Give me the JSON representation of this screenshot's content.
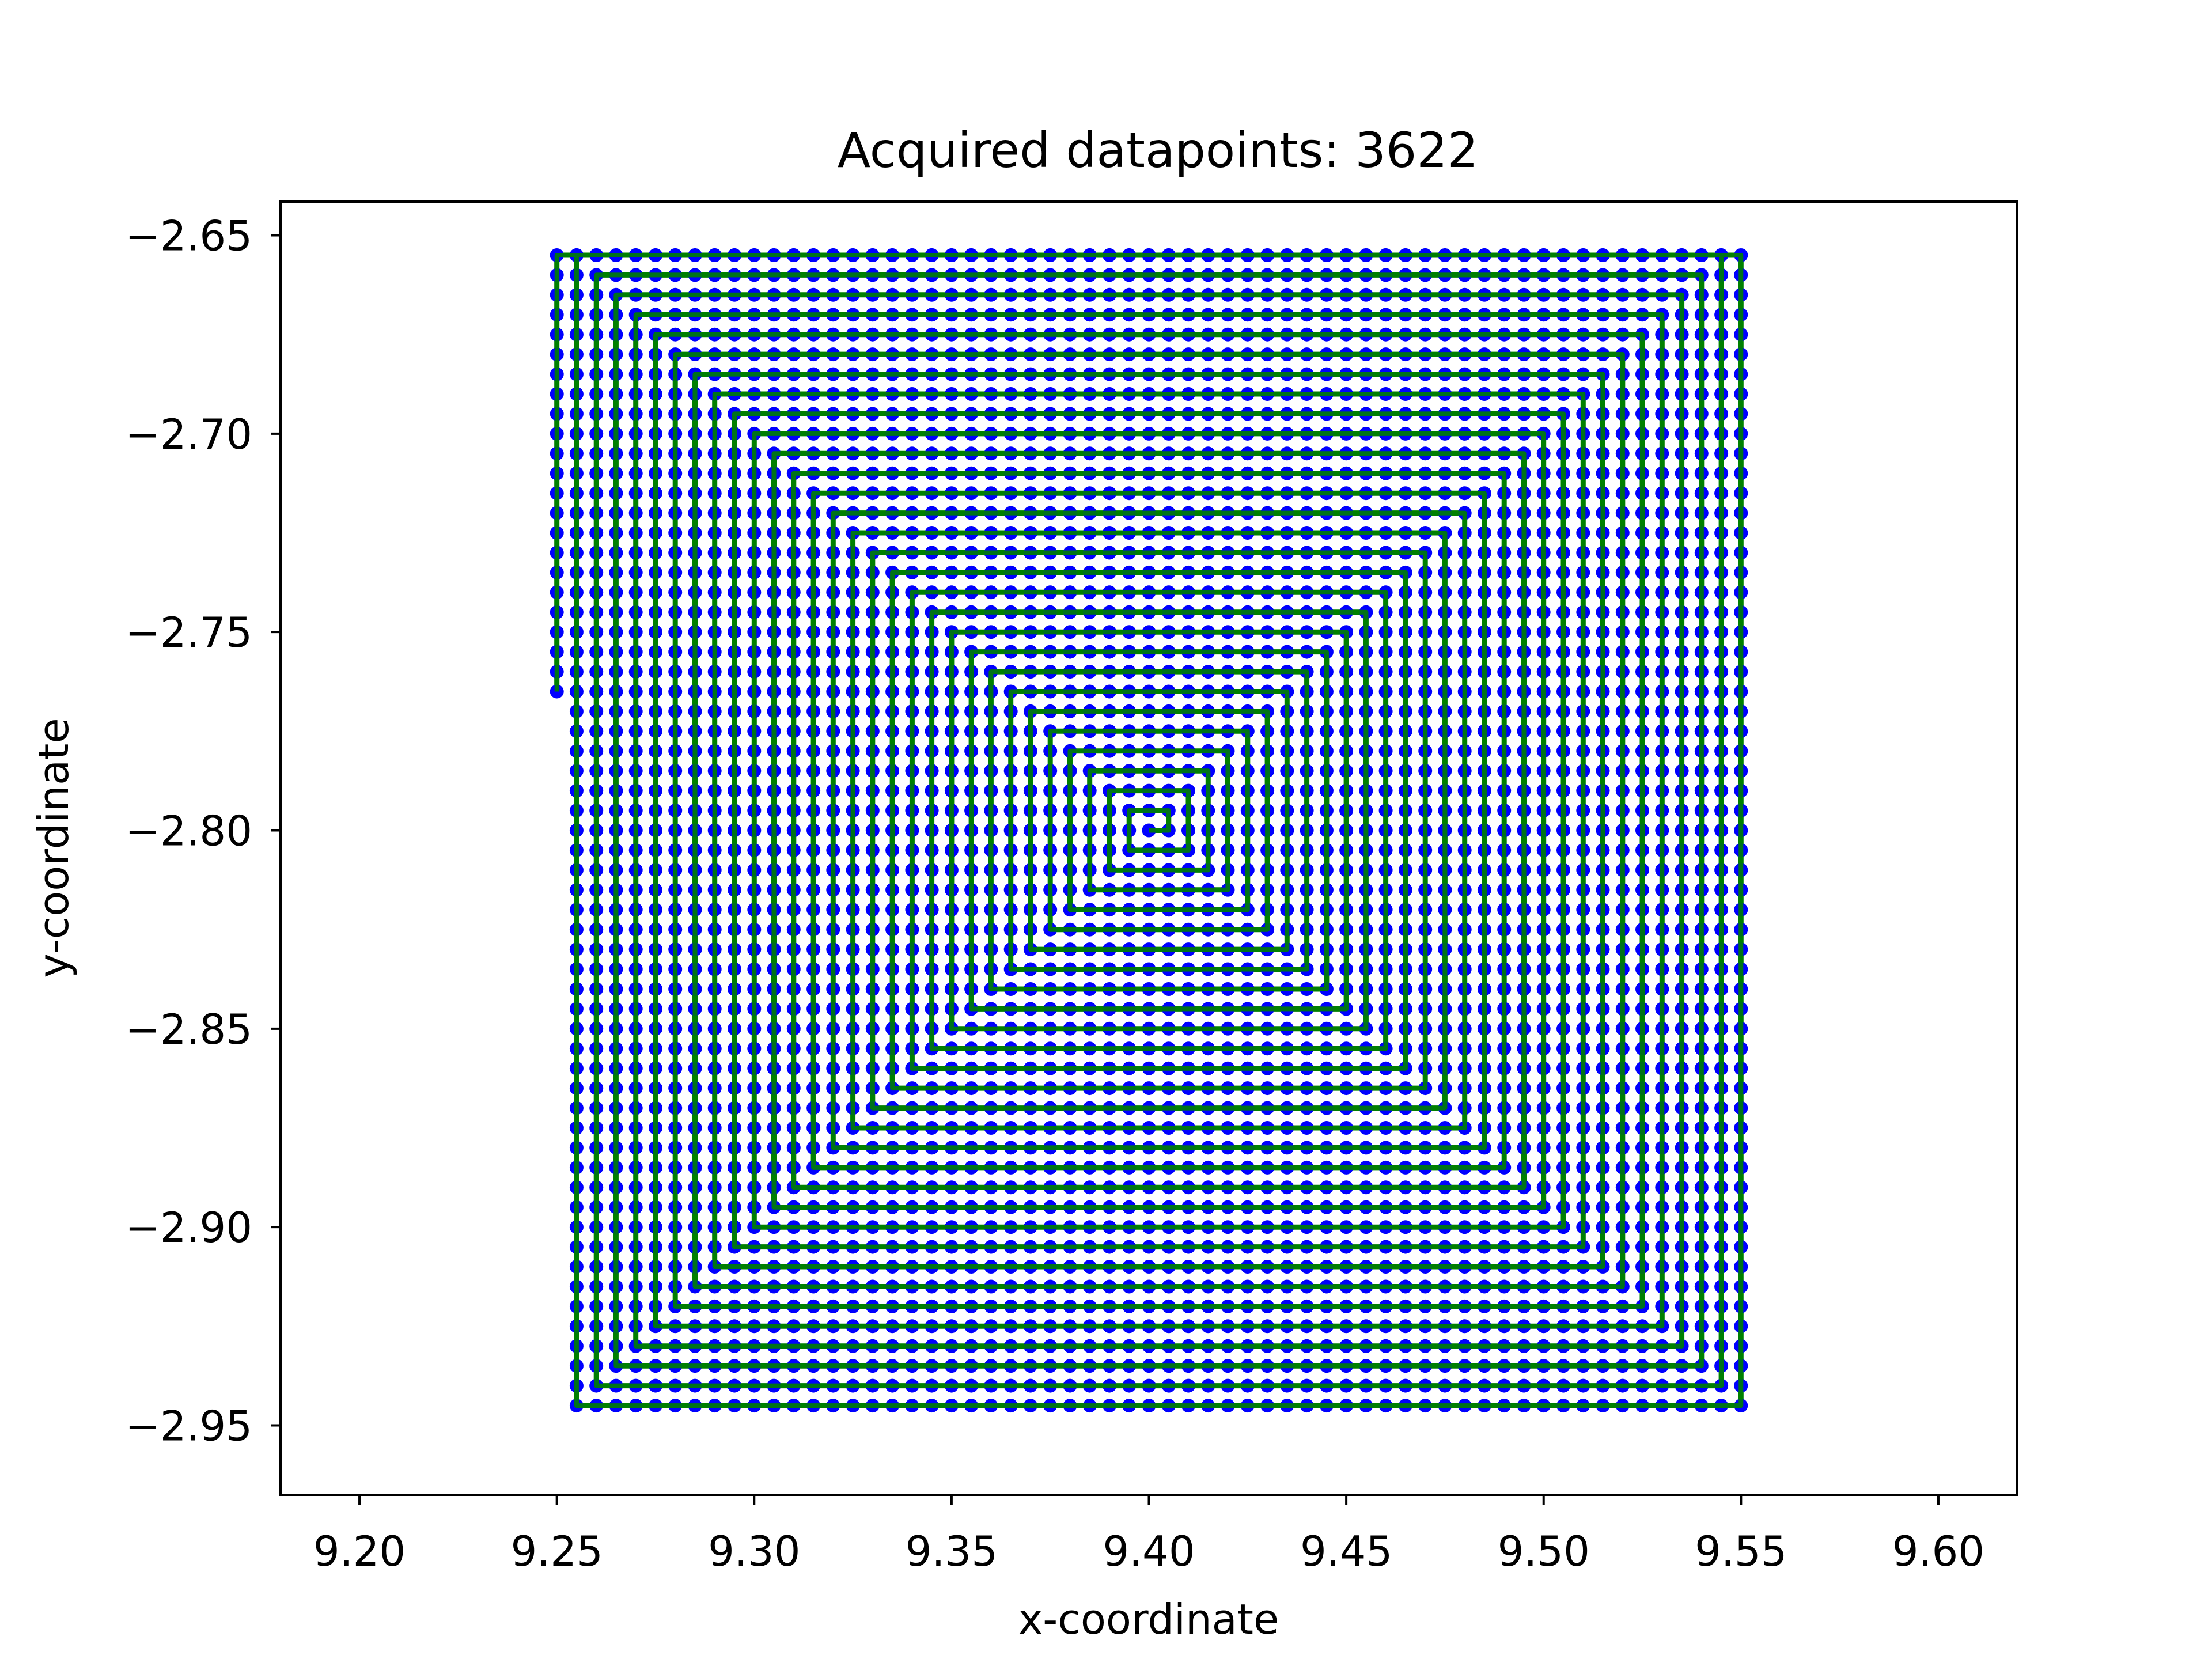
{
  "chart_data": {
    "type": "line",
    "title": "Acquired datapoints: 3622",
    "xlabel": "x-coordinate",
    "ylabel": "y-coordinate",
    "xlim": [
      9.18,
      9.62
    ],
    "ylim": [
      -2.9675,
      -2.6415
    ],
    "x_ticks": [
      9.2,
      9.25,
      9.3,
      9.35,
      9.4,
      9.45,
      9.5,
      9.55,
      9.6
    ],
    "x_tick_labels": [
      "9.20",
      "9.25",
      "9.30",
      "9.35",
      "9.40",
      "9.45",
      "9.50",
      "9.55",
      "9.60"
    ],
    "y_ticks": [
      -2.65,
      -2.7,
      -2.75,
      -2.8,
      -2.85,
      -2.9,
      -2.95
    ],
    "y_tick_labels": [
      "−2.65",
      "−2.70",
      "−2.75",
      "−2.80",
      "−2.85",
      "−2.90",
      "−2.95"
    ],
    "grid": false,
    "legend": "none",
    "series": [
      {
        "pattern": "square-spiral",
        "marker_color": "#0000ff",
        "line_color": "#008000",
        "step": 0.005,
        "center": [
          9.4,
          -2.8
        ],
        "x_range": [
          9.25,
          9.55
        ],
        "y_range": [
          -2.95,
          -2.655
        ],
        "count": 3622
      }
    ]
  }
}
